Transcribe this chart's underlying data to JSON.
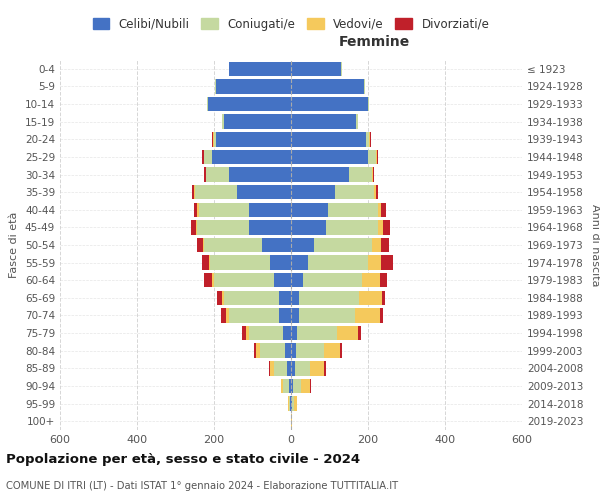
{
  "age_groups": [
    "0-4",
    "5-9",
    "10-14",
    "15-19",
    "20-24",
    "25-29",
    "30-34",
    "35-39",
    "40-44",
    "45-49",
    "50-54",
    "55-59",
    "60-64",
    "65-69",
    "70-74",
    "75-79",
    "80-84",
    "85-89",
    "90-94",
    "95-99",
    "100+"
  ],
  "birth_years": [
    "2019-2023",
    "2014-2018",
    "2009-2013",
    "2004-2008",
    "1999-2003",
    "1994-1998",
    "1989-1993",
    "1984-1988",
    "1979-1983",
    "1974-1978",
    "1969-1973",
    "1964-1968",
    "1959-1963",
    "1954-1958",
    "1949-1953",
    "1944-1948",
    "1939-1943",
    "1934-1938",
    "1929-1933",
    "1924-1928",
    "≤ 1923"
  ],
  "male_celibi": [
    160,
    195,
    215,
    175,
    195,
    205,
    160,
    140,
    110,
    110,
    75,
    55,
    45,
    30,
    30,
    20,
    15,
    10,
    5,
    2,
    0
  ],
  "male_coniugati": [
    2,
    2,
    2,
    3,
    5,
    20,
    60,
    110,
    130,
    135,
    150,
    155,
    155,
    145,
    130,
    90,
    65,
    35,
    15,
    3,
    1
  ],
  "male_vedovi": [
    0,
    0,
    0,
    0,
    2,
    2,
    2,
    2,
    3,
    3,
    3,
    3,
    5,
    5,
    10,
    8,
    10,
    10,
    5,
    2,
    0
  ],
  "male_divorziati": [
    0,
    0,
    0,
    0,
    2,
    3,
    3,
    5,
    8,
    12,
    15,
    18,
    20,
    12,
    12,
    8,
    5,
    3,
    1,
    0,
    0
  ],
  "female_celibi": [
    130,
    190,
    200,
    170,
    195,
    200,
    150,
    115,
    95,
    90,
    60,
    45,
    30,
    22,
    20,
    15,
    12,
    10,
    5,
    2,
    0
  ],
  "female_coniugati": [
    2,
    2,
    2,
    3,
    8,
    20,
    60,
    100,
    130,
    135,
    150,
    155,
    155,
    155,
    145,
    105,
    75,
    40,
    20,
    5,
    1
  ],
  "female_vedovi": [
    0,
    0,
    0,
    0,
    2,
    3,
    3,
    5,
    10,
    15,
    25,
    35,
    45,
    60,
    65,
    55,
    40,
    35,
    25,
    8,
    2
  ],
  "female_divorziati": [
    0,
    0,
    0,
    0,
    2,
    2,
    3,
    5,
    12,
    18,
    20,
    30,
    20,
    8,
    10,
    8,
    5,
    5,
    2,
    0,
    0
  ],
  "colors": {
    "celibi": "#4472c4",
    "coniugati": "#c5d9a0",
    "vedovi": "#f5c95c",
    "divorziati": "#c0202a"
  },
  "title": "Popolazione per età, sesso e stato civile - 2024",
  "subtitle": "COMUNE DI ITRI (LT) - Dati ISTAT 1° gennaio 2024 - Elaborazione TUTTITALIA.IT",
  "xlabel_right": "Femmine",
  "ylabel_left": "Fasce di età",
  "ylabel_right": "Anni di nascita",
  "xlim": 600,
  "legend_labels": [
    "Celibi/Nubili",
    "Coniugati/e",
    "Vedovi/e",
    "Divorziati/e"
  ],
  "background_color": "#ffffff"
}
